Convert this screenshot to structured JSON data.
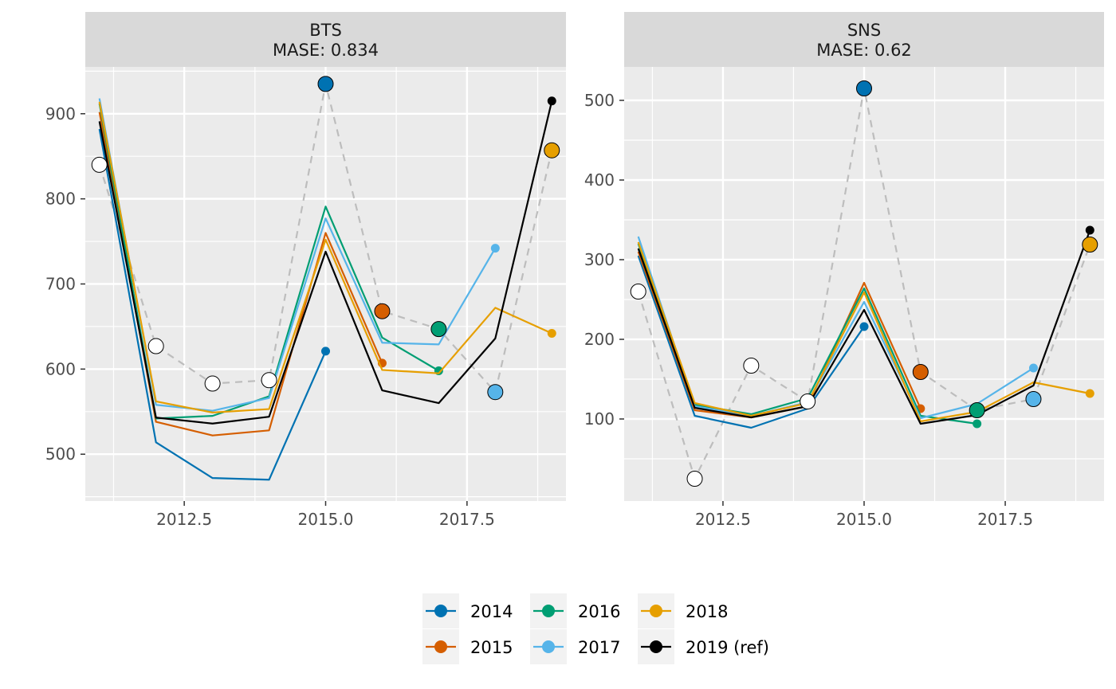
{
  "chart_data": {
    "type": "line",
    "layout": "faceted",
    "x_ticks": [
      2012.5,
      2015.0,
      2017.5
    ],
    "x_tick_labels": [
      "2012.5",
      "2015.0",
      "2017.5"
    ],
    "xlim": [
      2010.75,
      2019.25
    ],
    "legend": {
      "position": "bottom",
      "entries": [
        {
          "label": "2014",
          "color": "#0072B2"
        },
        {
          "label": "2015",
          "color": "#D55E00"
        },
        {
          "label": "2016",
          "color": "#009E73"
        },
        {
          "label": "2017",
          "color": "#56B4E9"
        },
        {
          "label": "2018",
          "color": "#E69F00"
        },
        {
          "label": "2019 (ref)",
          "color": "#000000"
        }
      ]
    },
    "observed_style": {
      "line": "#bdbdbd",
      "dash": true,
      "marker": "open circle"
    },
    "panels": [
      {
        "title": "BTS",
        "subtitle": "MASE: 0.834",
        "ylim": [
          445,
          955
        ],
        "y_ticks": [
          500,
          600,
          700,
          800,
          900
        ],
        "y_tick_labels": [
          "500",
          "600",
          "700",
          "800",
          "900"
        ],
        "observed": {
          "x": [
            2011,
            2012,
            2013,
            2014,
            2015,
            2016,
            2017,
            2018,
            2019
          ],
          "y": [
            840,
            627,
            583,
            587,
            935,
            668,
            647,
            573,
            857
          ]
        },
        "series": [
          {
            "name": "2014",
            "x": [
              2011,
              2012,
              2013,
              2014,
              2015
            ],
            "y": [
              882,
              514,
              472,
              470,
              621
            ]
          },
          {
            "name": "2015",
            "x": [
              2011,
              2012,
              2013,
              2014,
              2015,
              2016
            ],
            "y": [
              902,
              538,
              522,
              528,
              760,
              607
            ]
          },
          {
            "name": "2016",
            "x": [
              2011,
              2012,
              2013,
              2014,
              2015,
              2016,
              2017
            ],
            "y": [
              912,
              542,
              545,
              568,
              791,
              637,
              598
            ]
          },
          {
            "name": "2017",
            "x": [
              2011,
              2012,
              2013,
              2014,
              2015,
              2016,
              2017,
              2018
            ],
            "y": [
              918,
              558,
              551,
              566,
              777,
              631,
              629,
              742
            ]
          },
          {
            "name": "2018",
            "x": [
              2011,
              2012,
              2013,
              2014,
              2015,
              2016,
              2017,
              2018,
              2019
            ],
            "y": [
              914,
              562,
              549,
              553,
              752,
              599,
              595,
              672,
              642
            ]
          },
          {
            "name": "2019 (ref)",
            "x": [
              2011,
              2012,
              2013,
              2014,
              2015,
              2016,
              2017,
              2018,
              2019
            ],
            "y": [
              891,
              543,
              536,
              544,
              738,
              575,
              560,
              636,
              915
            ]
          }
        ]
      },
      {
        "title": "SNS",
        "subtitle": "MASE: 0.62",
        "ylim": [
          -3,
          542
        ],
        "y_ticks": [
          100,
          200,
          300,
          400,
          500
        ],
        "y_tick_labels": [
          "100",
          "200",
          "300",
          "400",
          "500"
        ],
        "observed": {
          "x": [
            2011,
            2012,
            2013,
            2014,
            2015,
            2016,
            2017,
            2018,
            2019
          ],
          "y": [
            260,
            25,
            167,
            122,
            515,
            159,
            111,
            125,
            319
          ]
        },
        "series": [
          {
            "name": "2014",
            "x": [
              2011,
              2012,
              2013,
              2014,
              2015
            ],
            "y": [
              305,
              104,
              89,
              113,
              216
            ]
          },
          {
            "name": "2015",
            "x": [
              2011,
              2012,
              2013,
              2014,
              2015,
              2016
            ],
            "y": [
              310,
              111,
              102,
              116,
              271,
              113
            ]
          },
          {
            "name": "2016",
            "x": [
              2011,
              2012,
              2013,
              2014,
              2015,
              2016,
              2017
            ],
            "y": [
              320,
              118,
              106,
              126,
              264,
              104,
              94
            ]
          },
          {
            "name": "2017",
            "x": [
              2011,
              2012,
              2013,
              2014,
              2015,
              2016,
              2017,
              2018
            ],
            "y": [
              329,
              116,
              104,
              121,
              247,
              101,
              119,
              164
            ]
          },
          {
            "name": "2018",
            "x": [
              2011,
              2012,
              2013,
              2014,
              2015,
              2016,
              2017,
              2018,
              2019
            ],
            "y": [
              322,
              120,
              104,
              120,
              259,
              97,
              109,
              146,
              132
            ]
          },
          {
            "name": "2019 (ref)",
            "x": [
              2011,
              2012,
              2013,
              2014,
              2015,
              2016,
              2017,
              2018,
              2019
            ],
            "y": [
              314,
              114,
              102,
              116,
              237,
              94,
              105,
              142,
              337
            ]
          }
        ]
      }
    ]
  }
}
